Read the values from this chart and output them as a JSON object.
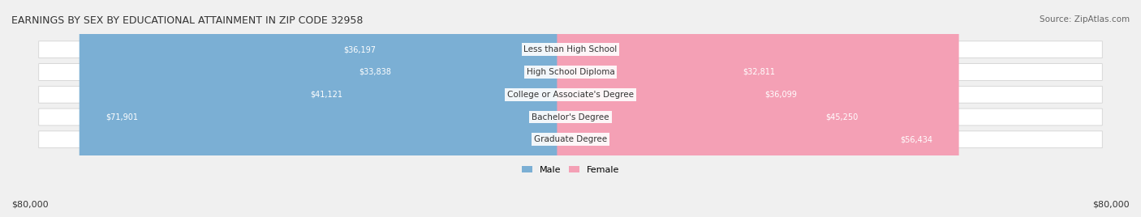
{
  "title": "EARNINGS BY SEX BY EDUCATIONAL ATTAINMENT IN ZIP CODE 32958",
  "source": "Source: ZipAtlas.com",
  "categories": [
    "Less than High School",
    "High School Diploma",
    "College or Associate's Degree",
    "Bachelor's Degree",
    "Graduate Degree"
  ],
  "male_values": [
    36197,
    33838,
    41121,
    71901,
    0
  ],
  "female_values": [
    0,
    32811,
    36099,
    45250,
    56434
  ],
  "male_color": "#7bafd4",
  "female_color": "#f4a0b5",
  "male_color_dark": "#6b9fc4",
  "female_color_dark": "#e890a5",
  "max_value": 80000,
  "bg_color": "#f0f0f0",
  "row_bg": "#e8e8e8",
  "label_color": "#333333",
  "title_color": "#333333",
  "axis_label_left": "$80,000",
  "axis_label_right": "$80,000",
  "legend_male": "Male",
  "legend_female": "Female"
}
